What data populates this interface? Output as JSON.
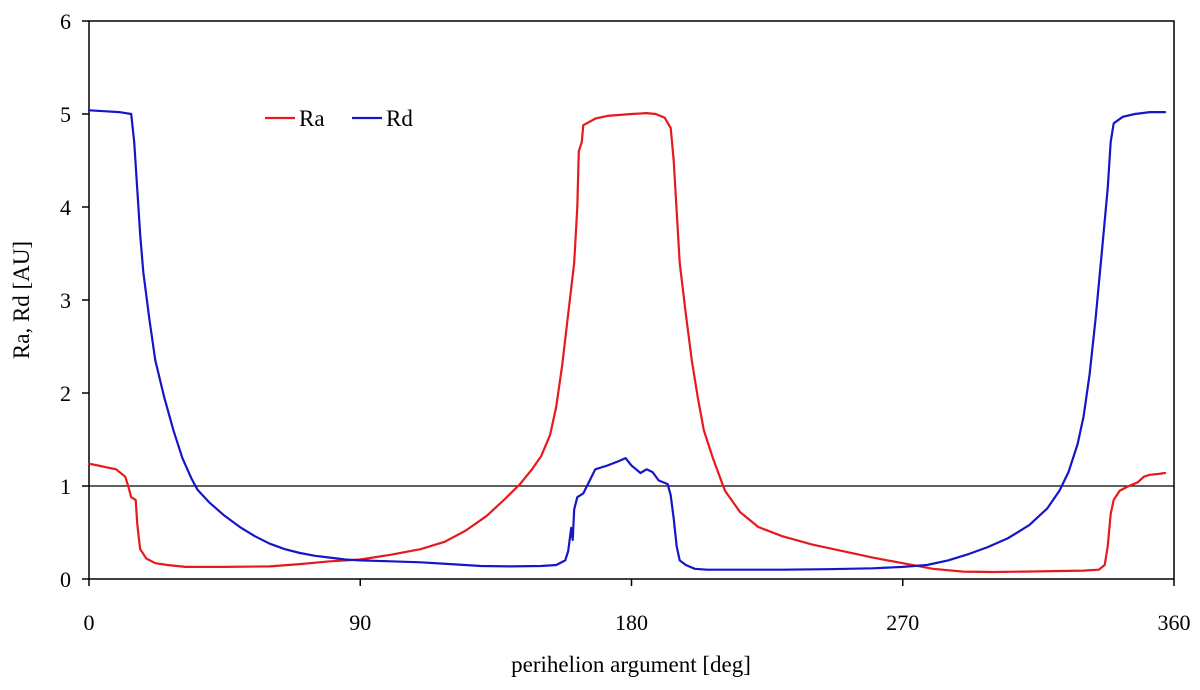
{
  "chart_data": {
    "type": "line",
    "title": "",
    "xlabel": "perihelion argument [deg]",
    "ylabel": "Ra, Rd [AU]",
    "xlim": [
      0,
      360
    ],
    "ylim": [
      0,
      6
    ],
    "xticks": [
      "0",
      "90",
      "180",
      "270",
      "360"
    ],
    "yticks": [
      "0",
      "1",
      "2",
      "3",
      "4",
      "5",
      "6"
    ],
    "grid": false,
    "legend_position": "top-left",
    "reference_line": {
      "y": 1,
      "color": "#000000"
    },
    "series": [
      {
        "name": "Ra",
        "color": "#e8191c",
        "points": [
          [
            0,
            1.24
          ],
          [
            3,
            1.22
          ],
          [
            6,
            1.2
          ],
          [
            9,
            1.18
          ],
          [
            12,
            1.1
          ],
          [
            13,
            1.0
          ],
          [
            14,
            0.88
          ],
          [
            15.5,
            0.85
          ],
          [
            16,
            0.6
          ],
          [
            16.5,
            0.45
          ],
          [
            17,
            0.32
          ],
          [
            19,
            0.22
          ],
          [
            22,
            0.17
          ],
          [
            26,
            0.15
          ],
          [
            32,
            0.13
          ],
          [
            45,
            0.13
          ],
          [
            60,
            0.135
          ],
          [
            70,
            0.16
          ],
          [
            80,
            0.19
          ],
          [
            90,
            0.21
          ],
          [
            100,
            0.26
          ],
          [
            110,
            0.32
          ],
          [
            118,
            0.4
          ],
          [
            125,
            0.52
          ],
          [
            132,
            0.68
          ],
          [
            138,
            0.86
          ],
          [
            143,
            1.02
          ],
          [
            147,
            1.18
          ],
          [
            150,
            1.32
          ],
          [
            153,
            1.55
          ],
          [
            155,
            1.85
          ],
          [
            157,
            2.3
          ],
          [
            159,
            2.85
          ],
          [
            161,
            3.4
          ],
          [
            162,
            4.0
          ],
          [
            162.5,
            4.6
          ],
          [
            163.5,
            4.7
          ],
          [
            164,
            4.88
          ],
          [
            168,
            4.95
          ],
          [
            172,
            4.98
          ],
          [
            180,
            5.0
          ],
          [
            185,
            5.01
          ],
          [
            188,
            5.0
          ],
          [
            191,
            4.96
          ],
          [
            193,
            4.85
          ],
          [
            194,
            4.5
          ],
          [
            195,
            3.95
          ],
          [
            196,
            3.4
          ],
          [
            198,
            2.85
          ],
          [
            200,
            2.35
          ],
          [
            202,
            1.95
          ],
          [
            204,
            1.6
          ],
          [
            207,
            1.3
          ],
          [
            211,
            0.95
          ],
          [
            216,
            0.72
          ],
          [
            222,
            0.56
          ],
          [
            230,
            0.46
          ],
          [
            240,
            0.37
          ],
          [
            250,
            0.3
          ],
          [
            260,
            0.23
          ],
          [
            270,
            0.17
          ],
          [
            280,
            0.11
          ],
          [
            290,
            0.08
          ],
          [
            300,
            0.075
          ],
          [
            310,
            0.08
          ],
          [
            320,
            0.085
          ],
          [
            330,
            0.09
          ],
          [
            335,
            0.1
          ],
          [
            337,
            0.15
          ],
          [
            338,
            0.35
          ],
          [
            339,
            0.7
          ],
          [
            340,
            0.85
          ],
          [
            342,
            0.95
          ],
          [
            345,
            1.0
          ],
          [
            348,
            1.04
          ],
          [
            350,
            1.1
          ],
          [
            352,
            1.12
          ],
          [
            355,
            1.13
          ],
          [
            357,
            1.14
          ]
        ]
      },
      {
        "name": "Rd",
        "color": "#1616c8",
        "points": [
          [
            0,
            5.04
          ],
          [
            5,
            5.03
          ],
          [
            10,
            5.02
          ],
          [
            14,
            5.0
          ],
          [
            15,
            4.7
          ],
          [
            16,
            4.2
          ],
          [
            17,
            3.7
          ],
          [
            18,
            3.3
          ],
          [
            20,
            2.8
          ],
          [
            22,
            2.35
          ],
          [
            25,
            1.95
          ],
          [
            28,
            1.6
          ],
          [
            31,
            1.3
          ],
          [
            34,
            1.08
          ],
          [
            36,
            0.96
          ],
          [
            40,
            0.82
          ],
          [
            45,
            0.68
          ],
          [
            50,
            0.56
          ],
          [
            55,
            0.46
          ],
          [
            60,
            0.38
          ],
          [
            65,
            0.32
          ],
          [
            70,
            0.28
          ],
          [
            75,
            0.25
          ],
          [
            80,
            0.23
          ],
          [
            85,
            0.21
          ],
          [
            90,
            0.2
          ],
          [
            100,
            0.19
          ],
          [
            110,
            0.18
          ],
          [
            120,
            0.16
          ],
          [
            130,
            0.14
          ],
          [
            140,
            0.135
          ],
          [
            150,
            0.14
          ],
          [
            155,
            0.15
          ],
          [
            158,
            0.2
          ],
          [
            159,
            0.3
          ],
          [
            160,
            0.55
          ],
          [
            160.5,
            0.42
          ],
          [
            161,
            0.75
          ],
          [
            162,
            0.88
          ],
          [
            164,
            0.92
          ],
          [
            166,
            1.05
          ],
          [
            168,
            1.18
          ],
          [
            172,
            1.22
          ],
          [
            176,
            1.27
          ],
          [
            178,
            1.3
          ],
          [
            180,
            1.22
          ],
          [
            183,
            1.14
          ],
          [
            185,
            1.18
          ],
          [
            187,
            1.15
          ],
          [
            189,
            1.06
          ],
          [
            192,
            1.02
          ],
          [
            193,
            0.9
          ],
          [
            194,
            0.65
          ],
          [
            195,
            0.35
          ],
          [
            196,
            0.2
          ],
          [
            198,
            0.15
          ],
          [
            201,
            0.11
          ],
          [
            205,
            0.1
          ],
          [
            215,
            0.1
          ],
          [
            230,
            0.1
          ],
          [
            245,
            0.105
          ],
          [
            260,
            0.115
          ],
          [
            270,
            0.13
          ],
          [
            278,
            0.15
          ],
          [
            285,
            0.2
          ],
          [
            292,
            0.27
          ],
          [
            298,
            0.34
          ],
          [
            305,
            0.44
          ],
          [
            312,
            0.58
          ],
          [
            318,
            0.76
          ],
          [
            322,
            0.95
          ],
          [
            325,
            1.15
          ],
          [
            328,
            1.45
          ],
          [
            330,
            1.75
          ],
          [
            332,
            2.2
          ],
          [
            334,
            2.8
          ],
          [
            336,
            3.5
          ],
          [
            338,
            4.2
          ],
          [
            339,
            4.7
          ],
          [
            340,
            4.9
          ],
          [
            343,
            4.97
          ],
          [
            347,
            5.0
          ],
          [
            352,
            5.02
          ],
          [
            357,
            5.02
          ]
        ]
      }
    ]
  }
}
